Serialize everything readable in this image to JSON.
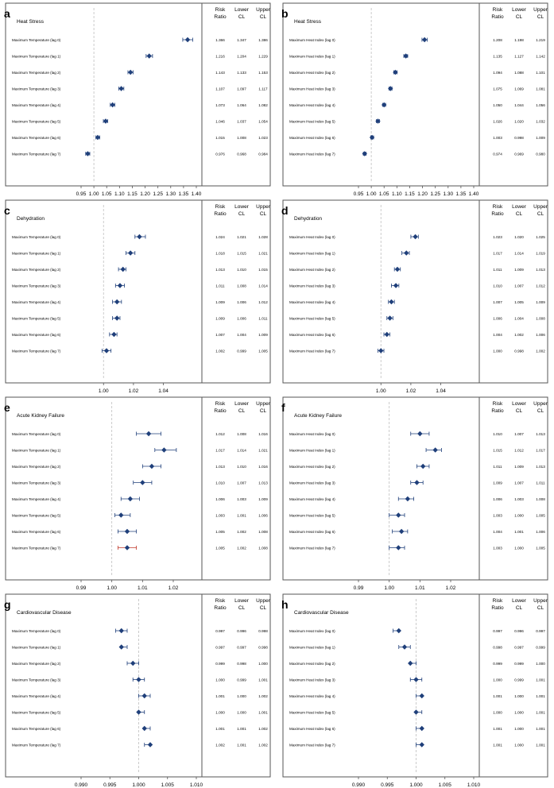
{
  "colors": {
    "marker": "#1f3f7a",
    "ci": "#1f3f7a",
    "ci_last": "#c0392b",
    "border": "#555555",
    "refline": "#bfbfbf"
  },
  "column_headers": [
    {
      "line1": "Risk",
      "line2": "Ratio"
    },
    {
      "line1": "Lower",
      "line2": "CL"
    },
    {
      "line1": "Upper",
      "line2": "CL"
    }
  ],
  "chart_data": [
    {
      "type": "forest",
      "panel_letter": "a",
      "title": "Heat  Stress",
      "labels": [
        "Maximum Temperature (lag 0)",
        "Maximum Temperature (lag 1)",
        "Maximum Temperature (lag 2)",
        "Maximum Temperature (lag 3)",
        "Maximum Temperature (lag 4)",
        "Maximum Temperature (lag 5)",
        "Maximum Temperature (lag 6)",
        "Maximum Temperature (lag 7)"
      ],
      "rr": [
        "1.366",
        "1.216",
        "1.143",
        "1.107",
        "1.073",
        "1.046",
        "1.015",
        "0.976"
      ],
      "lower": [
        "1.347",
        "1.204",
        "1.133",
        "1.097",
        "1.064",
        "1.037",
        "1.008",
        "0.968"
      ],
      "upper": [
        "1.386",
        "1.229",
        "1.153",
        "1.117",
        "1.082",
        "1.054",
        "1.023",
        "0.984"
      ],
      "xlim": [
        0.95,
        1.4
      ],
      "reference": 1.0,
      "ticks": [
        0.95,
        1.0,
        1.05,
        1.1,
        1.15,
        1.2,
        1.25,
        1.3,
        1.35,
        1.4
      ],
      "tick_labels": [
        "0.95",
        "1.00",
        "1.05",
        "1.10",
        "1.15",
        "1.20",
        "1.25",
        "1.30",
        "1.35",
        "1.40"
      ]
    },
    {
      "type": "forest",
      "panel_letter": "b",
      "title": "Heat  Stress",
      "labels": [
        "Maximum Heat Index (lag 0)",
        "Maximum Heat Index (lag 1)",
        "Maximum Heat Index (lag 2)",
        "Maximum Heat Index (lag 3)",
        "Maximum Heat Index (lag 4)",
        "Maximum Heat Index (lag 5)",
        "Maximum Heat Index (lag 6)",
        "Maximum Heat Index (lag 7)"
      ],
      "rr": [
        "1.208",
        "1.135",
        "1.094",
        "1.075",
        "1.050",
        "1.026",
        "1.003",
        "0.974"
      ],
      "lower": [
        "1.198",
        "1.127",
        "1.088",
        "1.069",
        "1.044",
        "1.020",
        "0.998",
        "0.969"
      ],
      "upper": [
        "1.219",
        "1.142",
        "1.101",
        "1.081",
        "1.056",
        "1.032",
        "1.009",
        "0.980"
      ],
      "xlim": [
        0.95,
        1.4
      ],
      "reference": 1.0,
      "ticks": [
        0.95,
        1.0,
        1.05,
        1.1,
        1.15,
        1.2,
        1.25,
        1.3,
        1.35,
        1.4
      ],
      "tick_labels": [
        "0.95",
        "1.00",
        "1.05",
        "1.10",
        "1.15",
        "1.20",
        "1.25",
        "1.30",
        "1.35",
        "1.40"
      ]
    },
    {
      "type": "forest",
      "panel_letter": "c",
      "title": "Dehydration",
      "labels": [
        "Maximum Temperature (lag 0)",
        "Maximum Temperature (lag 1)",
        "Maximum Temperature (lag 2)",
        "Maximum Temperature (lag 3)",
        "Maximum Temperature (lag 4)",
        "Maximum Temperature (lag 5)",
        "Maximum Temperature (lag 6)",
        "Maximum Temperature (lag 7)"
      ],
      "rr": [
        "1.024",
        "1.018",
        "1.013",
        "1.011",
        "1.009",
        "1.009",
        "1.007",
        "1.002"
      ],
      "lower": [
        "1.021",
        "1.015",
        "1.010",
        "1.008",
        "1.006",
        "1.006",
        "1.004",
        "0.999"
      ],
      "upper": [
        "1.028",
        "1.021",
        "1.015",
        "1.014",
        "1.012",
        "1.011",
        "1.009",
        "1.005"
      ],
      "xlim": [
        0.985,
        1.062
      ],
      "reference": 1.0,
      "ticks": [
        1.0,
        1.02,
        1.04
      ],
      "tick_labels": [
        "1.00",
        "1.02",
        "1.04"
      ]
    },
    {
      "type": "forest",
      "panel_letter": "d",
      "title": "Dehydration",
      "labels": [
        "Maximum Heat Index (lag 0)",
        "Maximum Heat Index (lag 1)",
        "Maximum Heat Index (lag 2)",
        "Maximum Heat Index (lag 3)",
        "Maximum Heat Index (lag 4)",
        "Maximum Heat Index (lag 5)",
        "Maximum Heat Index (lag 6)",
        "Maximum Heat Index (lag 7)"
      ],
      "rr": [
        "1.023",
        "1.017",
        "1.011",
        "1.010",
        "1.007",
        "1.006",
        "1.004",
        "1.000"
      ],
      "lower": [
        "1.020",
        "1.014",
        "1.009",
        "1.007",
        "1.005",
        "1.004",
        "1.002",
        "0.998"
      ],
      "upper": [
        "1.025",
        "1.019",
        "1.013",
        "1.012",
        "1.009",
        "1.008",
        "1.006",
        "1.002"
      ],
      "xlim": [
        0.985,
        1.062
      ],
      "reference": 1.0,
      "ticks": [
        1.0,
        1.02,
        1.04
      ],
      "tick_labels": [
        "1.00",
        "1.02",
        "1.04"
      ]
    },
    {
      "type": "forest",
      "panel_letter": "e",
      "title": "Acute  Kidney  Failure",
      "labels": [
        "Maximum Temperature (lag 0)",
        "Maximum Temperature (lag 1)",
        "Maximum Temperature (lag 2)",
        "Maximum Temperature (lag 3)",
        "Maximum Temperature (lag 4)",
        "Maximum Temperature (lag 5)",
        "Maximum Temperature (lag 6)",
        "Maximum Temperature (lag 7)"
      ],
      "rr": [
        "1.012",
        "1.017",
        "1.013",
        "1.010",
        "1.006",
        "1.003",
        "1.005",
        "1.005"
      ],
      "lower": [
        "1.008",
        "1.014",
        "1.010",
        "1.007",
        "1.003",
        "1.001",
        "1.002",
        "1.002"
      ],
      "upper": [
        "1.016",
        "1.021",
        "1.016",
        "1.013",
        "1.009",
        "1.006",
        "1.008",
        "1.008"
      ],
      "xlim": [
        0.99,
        1.0275
      ],
      "reference": 1.0,
      "ticks": [
        0.99,
        1.0,
        1.01,
        1.02
      ],
      "tick_labels": [
        "0.99",
        "1.00",
        "1.01",
        "1.02"
      ]
    },
    {
      "type": "forest",
      "panel_letter": "f",
      "title": "Acute  Kidney  Failure",
      "labels": [
        "Maximum Heat Index (lag 0)",
        "Maximum Heat Index (lag 1)",
        "Maximum Heat Index (lag 2)",
        "Maximum Heat Index (lag 3)",
        "Maximum Heat Index (lag 4)",
        "Maximum Heat Index (lag 5)",
        "Maximum Heat Index (lag 6)",
        "Maximum Heat Index (lag 7)"
      ],
      "rr": [
        "1.010",
        "1.015",
        "1.011",
        "1.009",
        "1.006",
        "1.003",
        "1.004",
        "1.003"
      ],
      "lower": [
        "1.007",
        "1.012",
        "1.009",
        "1.007",
        "1.003",
        "1.000",
        "1.001",
        "1.000"
      ],
      "upper": [
        "1.013",
        "1.017",
        "1.013",
        "1.011",
        "1.008",
        "1.005",
        "1.006",
        "1.005"
      ],
      "xlim": [
        0.99,
        1.0275
      ],
      "reference": 1.0,
      "ticks": [
        0.99,
        1.0,
        1.01,
        1.02
      ],
      "tick_labels": [
        "0.99",
        "1.00",
        "1.01",
        "1.02"
      ]
    },
    {
      "type": "forest",
      "panel_letter": "g",
      "title": "Cardiovascular  Disease",
      "labels": [
        "Maximum Temperature (lag 0)",
        "Maximum Temperature (lag 1)",
        "Maximum Temperature (lag 2)",
        "Maximum Temperature (lag 3)",
        "Maximum Temperature (lag 4)",
        "Maximum Temperature (lag 5)",
        "Maximum Temperature (lag 6)",
        "Maximum Temperature (lag 7)"
      ],
      "rr": [
        "0.997",
        "0.997",
        "0.999",
        "1.000",
        "1.001",
        "1.000",
        "1.001",
        "1.002"
      ],
      "lower": [
        "0.996",
        "0.997",
        "0.998",
        "0.999",
        "1.000",
        "1.000",
        "1.001",
        "1.001"
      ],
      "upper": [
        "0.998",
        "0.998",
        "1.000",
        "1.001",
        "1.002",
        "1.001",
        "1.002",
        "1.002"
      ],
      "xlim": [
        0.99,
        1.01
      ],
      "reference": 1.0,
      "ticks": [
        0.99,
        0.995,
        1.0,
        1.005,
        1.01
      ],
      "tick_labels": [
        "0.990",
        "0.995",
        "1.000",
        "1.005",
        "1.010"
      ]
    },
    {
      "type": "forest",
      "panel_letter": "h",
      "title": "Cardiovascular  Disease",
      "labels": [
        "Maximum Heat Index (lag 0)",
        "Maximum Heat Index (lag 1)",
        "Maximum Heat Index (lag 2)",
        "Maximum Heat Index (lag 3)",
        "Maximum Heat Index (lag 4)",
        "Maximum Heat Index (lag 5)",
        "Maximum Heat Index (lag 6)",
        "Maximum Heat Index (lag 7)"
      ],
      "rr": [
        "0.997",
        "0.998",
        "0.999",
        "1.000",
        "1.001",
        "1.000",
        "1.001",
        "1.001"
      ],
      "lower": [
        "0.996",
        "0.997",
        "0.999",
        "0.999",
        "1.000",
        "1.000",
        "1.000",
        "1.000"
      ],
      "upper": [
        "0.997",
        "0.999",
        "1.000",
        "1.001",
        "1.001",
        "1.001",
        "1.001",
        "1.001"
      ],
      "xlim": [
        0.99,
        1.01
      ],
      "reference": 1.0,
      "ticks": [
        0.99,
        0.995,
        1.0,
        1.005,
        1.01
      ],
      "tick_labels": [
        "0.990",
        "0.995",
        "1.000",
        "1.005",
        "1.010"
      ]
    }
  ]
}
